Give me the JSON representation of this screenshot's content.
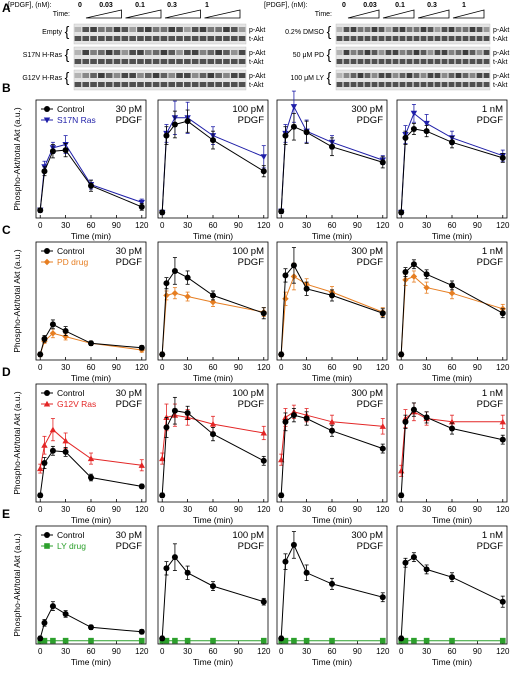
{
  "panel_letters": [
    "A",
    "B",
    "C",
    "D",
    "E"
  ],
  "blots": {
    "header": {
      "pdgf_label": "[PDGF], (nM):",
      "time_label": "Time:",
      "concentrations": [
        "0",
        "0.03",
        "0.1",
        "0.3",
        "1"
      ]
    },
    "band_labels": [
      "p-Akt",
      "t-Akt"
    ],
    "left_rows": [
      "Empty",
      "S17N H-Ras",
      "G12V H-Ras"
    ],
    "right_rows": [
      "0.2% DMSO",
      "50 μM PD",
      "100 μM LY"
    ]
  },
  "common": {
    "ylabel": "Phospho-Akt/total Akt (a.u.)",
    "xlabel": "Time (min)",
    "xticks": [
      0,
      30,
      60,
      90,
      120
    ],
    "xlim": [
      -5,
      125
    ],
    "col_titles": [
      "30 pM\nPDGF",
      "100 pM\nPDGF",
      "300 pM\nPDGF",
      "1 nM\nPDGF"
    ]
  },
  "chart_data": [
    {
      "panel": "B",
      "type": "line",
      "x": [
        0,
        5,
        15,
        30,
        60,
        120
      ],
      "colors": [
        "#000000",
        "#1f1fa8"
      ],
      "series": [
        {
          "name": "Control",
          "marker": "circle",
          "cols": [
            [
              [
                0.05,
                0.02
              ],
              [
                0.4,
                0.04
              ],
              [
                0.58,
                0.06
              ],
              [
                0.59,
                0.06
              ],
              [
                0.27,
                0.05
              ],
              [
                0.08,
                0.03
              ]
            ],
            [
              [
                0.03,
                0.02
              ],
              [
                0.72,
                0.08
              ],
              [
                0.82,
                0.12
              ],
              [
                0.85,
                0.1
              ],
              [
                0.68,
                0.08
              ],
              [
                0.4,
                0.05
              ]
            ],
            [
              [
                0.04,
                0.02
              ],
              [
                0.72,
                0.08
              ],
              [
                0.8,
                0.12
              ],
              [
                0.75,
                0.1
              ],
              [
                0.62,
                0.08
              ],
              [
                0.48,
                0.05
              ]
            ],
            [
              [
                0.03,
                0.02
              ],
              [
                0.7,
                0.06
              ],
              [
                0.78,
                0.05
              ],
              [
                0.76,
                0.05
              ],
              [
                0.66,
                0.05
              ],
              [
                0.52,
                0.04
              ]
            ]
          ]
        },
        {
          "name": "S17N Ras",
          "marker": "triangle-down",
          "cols": [
            [
              [
                0.05,
                0.02
              ],
              [
                0.44,
                0.05
              ],
              [
                0.61,
                0.05
              ],
              [
                0.64,
                0.08
              ],
              [
                0.28,
                0.04
              ],
              [
                0.12,
                0.03
              ]
            ],
            [
              [
                0.03,
                0.02
              ],
              [
                0.74,
                0.08
              ],
              [
                0.88,
                0.15
              ],
              [
                0.88,
                0.14
              ],
              [
                0.72,
                0.08
              ],
              [
                0.53,
                0.1
              ]
            ],
            [
              [
                0.04,
                0.02
              ],
              [
                0.74,
                0.08
              ],
              [
                0.98,
                0.14
              ],
              [
                0.76,
                0.1
              ],
              [
                0.66,
                0.06
              ],
              [
                0.5,
                0.04
              ]
            ],
            [
              [
                0.03,
                0.02
              ],
              [
                0.73,
                0.08
              ],
              [
                0.92,
                0.08
              ],
              [
                0.83,
                0.08
              ],
              [
                0.7,
                0.06
              ],
              [
                0.54,
                0.05
              ]
            ]
          ]
        }
      ]
    },
    {
      "panel": "C",
      "type": "line",
      "x": [
        0,
        5,
        15,
        30,
        60,
        120
      ],
      "colors": [
        "#000000",
        "#e67e22"
      ],
      "series": [
        {
          "name": "Control",
          "marker": "circle",
          "cols": [
            [
              [
                0.03,
                0.02
              ],
              [
                0.17,
                0.03
              ],
              [
                0.3,
                0.04
              ],
              [
                0.24,
                0.04
              ],
              [
                0.13,
                0.02
              ],
              [
                0.09,
                0.02
              ]
            ],
            [
              [
                0.03,
                0.02
              ],
              [
                0.67,
                0.05
              ],
              [
                0.78,
                0.12
              ],
              [
                0.72,
                0.06
              ],
              [
                0.56,
                0.04
              ],
              [
                0.4,
                0.05
              ]
            ],
            [
              [
                0.03,
                0.02
              ],
              [
                0.74,
                0.06
              ],
              [
                0.83,
                0.16
              ],
              [
                0.62,
                0.06
              ],
              [
                0.56,
                0.05
              ],
              [
                0.4,
                0.04
              ]
            ],
            [
              [
                0.03,
                0.02
              ],
              [
                0.77,
                0.04
              ],
              [
                0.84,
                0.04
              ],
              [
                0.75,
                0.04
              ],
              [
                0.65,
                0.04
              ],
              [
                0.4,
                0.04
              ]
            ]
          ]
        },
        {
          "name": "PD drug",
          "marker": "diamond",
          "cols": [
            [
              [
                0.03,
                0.02
              ],
              [
                0.15,
                0.02
              ],
              [
                0.22,
                0.04
              ],
              [
                0.19,
                0.03
              ],
              [
                0.13,
                0.02
              ],
              [
                0.07,
                0.02
              ]
            ],
            [
              [
                0.03,
                0.02
              ],
              [
                0.56,
                0.04
              ],
              [
                0.58,
                0.05
              ],
              [
                0.55,
                0.04
              ],
              [
                0.5,
                0.04
              ],
              [
                0.41,
                0.04
              ]
            ],
            [
              [
                0.03,
                0.02
              ],
              [
                0.53,
                0.06
              ],
              [
                0.73,
                0.12
              ],
              [
                0.66,
                0.05
              ],
              [
                0.59,
                0.05
              ],
              [
                0.41,
                0.04
              ]
            ],
            [
              [
                0.03,
                0.02
              ],
              [
                0.7,
                0.05
              ],
              [
                0.73,
                0.05
              ],
              [
                0.63,
                0.05
              ],
              [
                0.58,
                0.05
              ],
              [
                0.44,
                0.04
              ]
            ]
          ]
        }
      ]
    },
    {
      "panel": "D",
      "type": "line",
      "x": [
        0,
        5,
        15,
        30,
        60,
        120
      ],
      "colors": [
        "#000000",
        "#e32626"
      ],
      "series": [
        {
          "name": "Control",
          "marker": "circle",
          "cols": [
            [
              [
                0.04,
                0.02
              ],
              [
                0.33,
                0.05
              ],
              [
                0.44,
                0.04
              ],
              [
                0.43,
                0.04
              ],
              [
                0.2,
                0.03
              ],
              [
                0.12,
                0.02
              ]
            ],
            [
              [
                0.04,
                0.02
              ],
              [
                0.65,
                0.09
              ],
              [
                0.8,
                0.12
              ],
              [
                0.78,
                0.06
              ],
              [
                0.59,
                0.06
              ],
              [
                0.35,
                0.04
              ]
            ],
            [
              [
                0.04,
                0.02
              ],
              [
                0.7,
                0.08
              ],
              [
                0.76,
                0.06
              ],
              [
                0.73,
                0.06
              ],
              [
                0.62,
                0.05
              ],
              [
                0.46,
                0.04
              ]
            ],
            [
              [
                0.04,
                0.02
              ],
              [
                0.7,
                0.06
              ],
              [
                0.81,
                0.06
              ],
              [
                0.74,
                0.05
              ],
              [
                0.64,
                0.05
              ],
              [
                0.54,
                0.04
              ]
            ]
          ]
        },
        {
          "name": "G12V Ras",
          "marker": "triangle-up",
          "cols": [
            [
              [
                0.28,
                0.04
              ],
              [
                0.49,
                0.08
              ],
              [
                0.63,
                0.1
              ],
              [
                0.53,
                0.07
              ],
              [
                0.37,
                0.05
              ],
              [
                0.31,
                0.05
              ]
            ],
            [
              [
                0.37,
                0.05
              ],
              [
                0.74,
                0.12
              ],
              [
                0.76,
                0.1
              ],
              [
                0.74,
                0.07
              ],
              [
                0.68,
                0.07
              ],
              [
                0.6,
                0.06
              ]
            ],
            [
              [
                0.36,
                0.05
              ],
              [
                0.74,
                0.08
              ],
              [
                0.79,
                0.06
              ],
              [
                0.76,
                0.06
              ],
              [
                0.7,
                0.06
              ],
              [
                0.66,
                0.07
              ]
            ],
            [
              [
                0.26,
                0.05
              ],
              [
                0.73,
                0.08
              ],
              [
                0.79,
                0.08
              ],
              [
                0.73,
                0.06
              ],
              [
                0.7,
                0.06
              ],
              [
                0.7,
                0.06
              ]
            ]
          ]
        }
      ]
    },
    {
      "panel": "E",
      "type": "line",
      "x": [
        0,
        5,
        15,
        30,
        60,
        120
      ],
      "colors": [
        "#000000",
        "#2ca02c"
      ],
      "series": [
        {
          "name": "Control",
          "marker": "circle",
          "cols": [
            [
              [
                0.03,
                0.02
              ],
              [
                0.17,
                0.03
              ],
              [
                0.32,
                0.04
              ],
              [
                0.25,
                0.03
              ],
              [
                0.13,
                0.02
              ],
              [
                0.09,
                0.02
              ]
            ],
            [
              [
                0.03,
                0.02
              ],
              [
                0.66,
                0.06
              ],
              [
                0.76,
                0.12
              ],
              [
                0.62,
                0.06
              ],
              [
                0.5,
                0.04
              ],
              [
                0.36,
                0.03
              ]
            ],
            [
              [
                0.03,
                0.02
              ],
              [
                0.72,
                0.07
              ],
              [
                0.87,
                0.12
              ],
              [
                0.62,
                0.07
              ],
              [
                0.52,
                0.05
              ],
              [
                0.4,
                0.04
              ]
            ],
            [
              [
                0.03,
                0.02
              ],
              [
                0.71,
                0.04
              ],
              [
                0.76,
                0.04
              ],
              [
                0.65,
                0.04
              ],
              [
                0.58,
                0.04
              ],
              [
                0.36,
                0.05
              ]
            ]
          ]
        },
        {
          "name": "LY drug",
          "marker": "square",
          "cols": [
            [
              [
                0.01,
                0.01
              ],
              [
                0.01,
                0.01
              ],
              [
                0.01,
                0.01
              ],
              [
                0.01,
                0.01
              ],
              [
                0.01,
                0.01
              ],
              [
                0.01,
                0.01
              ]
            ],
            [
              [
                0.01,
                0.01
              ],
              [
                0.01,
                0.01
              ],
              [
                0.01,
                0.01
              ],
              [
                0.01,
                0.01
              ],
              [
                0.01,
                0.01
              ],
              [
                0.01,
                0.01
              ]
            ],
            [
              [
                0.01,
                0.01
              ],
              [
                0.01,
                0.01
              ],
              [
                0.01,
                0.01
              ],
              [
                0.01,
                0.01
              ],
              [
                0.01,
                0.01
              ],
              [
                0.01,
                0.01
              ]
            ],
            [
              [
                0.01,
                0.01
              ],
              [
                0.01,
                0.01
              ],
              [
                0.01,
                0.01
              ],
              [
                0.01,
                0.01
              ],
              [
                0.01,
                0.01
              ],
              [
                0.01,
                0.01
              ]
            ]
          ]
        }
      ]
    }
  ]
}
